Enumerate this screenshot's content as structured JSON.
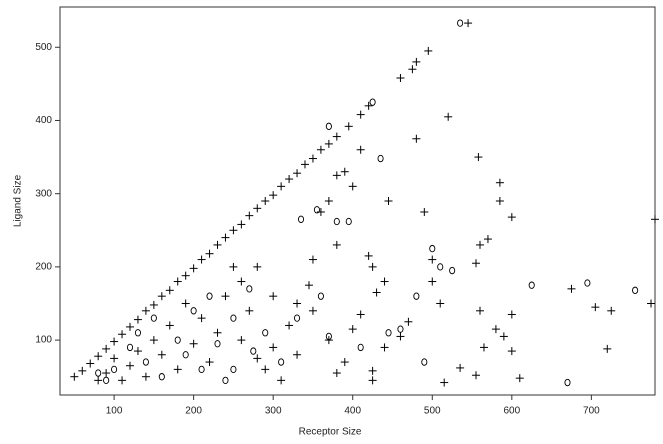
{
  "chart_data": {
    "type": "scatter",
    "x_label": "Receptor Size",
    "y_label": "Ligand Size",
    "xlim": [
      32,
      780
    ],
    "ylim": [
      25,
      555
    ],
    "xticks": [
      100,
      200,
      300,
      400,
      500,
      600,
      700
    ],
    "yticks": [
      100,
      200,
      300,
      400,
      500
    ],
    "series": [
      {
        "marker": "plus",
        "color": "#000000",
        "x": [
          50,
          60,
          70,
          80,
          90,
          100,
          110,
          120,
          130,
          140,
          150,
          160,
          170,
          180,
          190,
          200,
          210,
          220,
          230,
          240,
          250,
          260,
          270,
          280,
          290,
          300,
          310,
          320,
          330,
          340,
          350,
          360,
          370,
          380,
          395,
          410,
          420,
          460,
          475,
          480,
          495,
          545,
          520,
          480,
          558,
          585,
          585,
          600,
          445,
          490,
          410,
          390,
          400,
          380,
          370,
          360,
          380,
          425,
          420,
          440,
          430,
          500,
          560,
          570,
          555,
          500,
          510,
          600,
          590,
          600,
          580,
          560,
          565,
          610,
          555,
          515,
          535,
          425,
          425,
          460,
          470,
          440,
          380,
          400,
          410,
          780,
          705,
          725,
          720,
          675,
          775,
          350,
          345,
          330,
          320,
          300,
          290,
          270,
          260,
          250,
          240,
          230,
          220,
          210,
          200,
          190,
          180,
          170,
          160,
          150,
          140,
          130,
          120,
          110,
          100,
          90,
          80,
          260,
          280,
          310,
          330,
          350,
          370,
          390,
          300,
          280
        ],
        "y": [
          50,
          58,
          68,
          78,
          88,
          98,
          108,
          118,
          128,
          140,
          148,
          160,
          168,
          180,
          188,
          198,
          210,
          218,
          230,
          240,
          250,
          258,
          270,
          280,
          290,
          298,
          310,
          320,
          328,
          340,
          348,
          360,
          368,
          378,
          392,
          408,
          420,
          458,
          470,
          480,
          495,
          533,
          405,
          375,
          350,
          315,
          290,
          268,
          290,
          275,
          360,
          330,
          310,
          325,
          290,
          275,
          230,
          200,
          215,
          180,
          165,
          210,
          230,
          238,
          205,
          180,
          150,
          135,
          105,
          85,
          115,
          140,
          90,
          48,
          52,
          42,
          62,
          58,
          45,
          105,
          125,
          90,
          55,
          115,
          135,
          265,
          145,
          140,
          88,
          170,
          150,
          210,
          175,
          150,
          120,
          90,
          60,
          140,
          180,
          200,
          160,
          110,
          70,
          130,
          95,
          150,
          60,
          120,
          80,
          100,
          50,
          85,
          65,
          45,
          75,
          55,
          45,
          100,
          75,
          45,
          80,
          140,
          100,
          70,
          160,
          200
        ]
      },
      {
        "marker": "circle",
        "color": "#000000",
        "x": [
          535,
          425,
          370,
          435,
          380,
          355,
          335,
          395,
          480,
          500,
          490,
          460,
          445,
          510,
          525,
          625,
          695,
          755,
          670,
          410,
          370,
          360,
          270,
          250,
          230,
          210,
          200,
          180,
          160,
          140,
          120,
          100,
          90,
          80,
          290,
          310,
          330,
          250,
          220,
          190,
          150,
          130,
          275,
          240
        ],
        "y": [
          533,
          425,
          392,
          348,
          262,
          278,
          265,
          262,
          160,
          225,
          70,
          115,
          110,
          200,
          195,
          175,
          178,
          168,
          42,
          90,
          105,
          160,
          170,
          130,
          95,
          60,
          140,
          100,
          50,
          70,
          90,
          60,
          45,
          55,
          110,
          70,
          130,
          60,
          160,
          80,
          130,
          110,
          85,
          45
        ]
      }
    ]
  }
}
